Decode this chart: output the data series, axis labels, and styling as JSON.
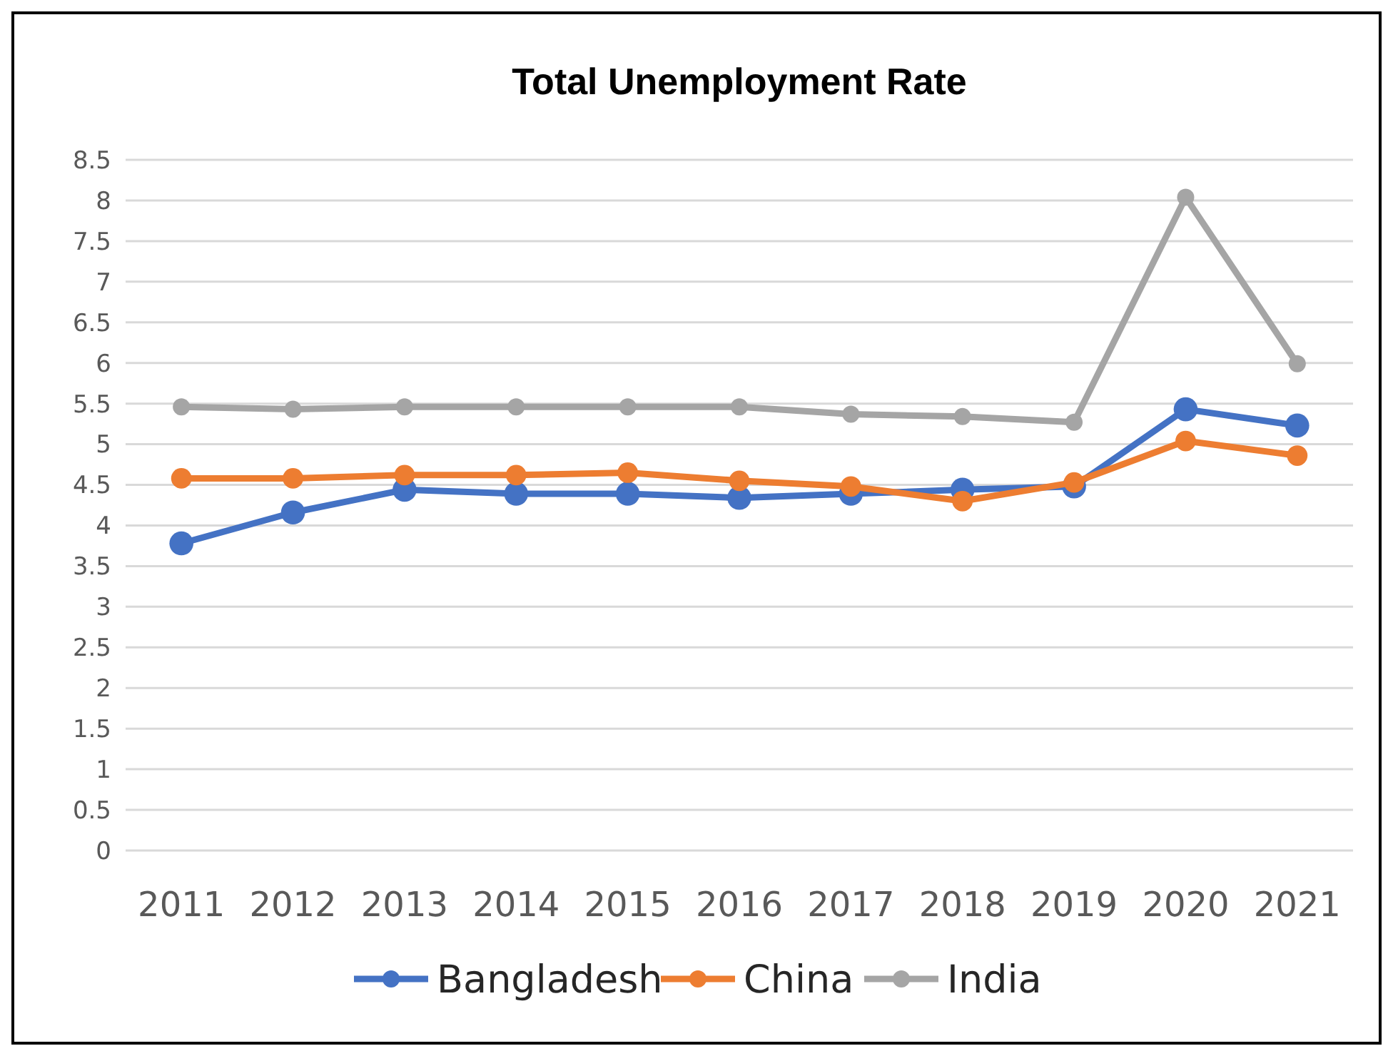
{
  "chart_data": {
    "type": "line",
    "title": "Total Unemployment Rate",
    "categories": [
      "2011",
      "2012",
      "2013",
      "2014",
      "2015",
      "2016",
      "2017",
      "2018",
      "2019",
      "2020",
      "2021"
    ],
    "series": [
      {
        "name": "Bangladesh",
        "color": "#4472c4",
        "values": [
          3.78,
          4.16,
          4.44,
          4.39,
          4.39,
          4.34,
          4.39,
          4.44,
          4.48,
          5.43,
          5.23
        ]
      },
      {
        "name": "China",
        "color": "#ed7d31",
        "values": [
          4.58,
          4.58,
          4.62,
          4.62,
          4.65,
          4.55,
          4.48,
          4.3,
          4.53,
          5.04,
          4.86
        ]
      },
      {
        "name": "India",
        "color": "#a5a5a5",
        "values": [
          5.46,
          5.43,
          5.46,
          5.46,
          5.46,
          5.46,
          5.37,
          5.34,
          5.27,
          8.04,
          5.99
        ]
      }
    ],
    "ylim": [
      0,
      8.5
    ],
    "yticks": [
      0,
      0.5,
      1,
      1.5,
      2,
      2.5,
      3,
      3.5,
      4,
      4.5,
      5,
      5.5,
      6,
      6.5,
      7,
      7.5,
      8,
      8.5
    ],
    "grid": "y",
    "legend": "bottom",
    "marker": "circle",
    "line_style": "solid"
  }
}
